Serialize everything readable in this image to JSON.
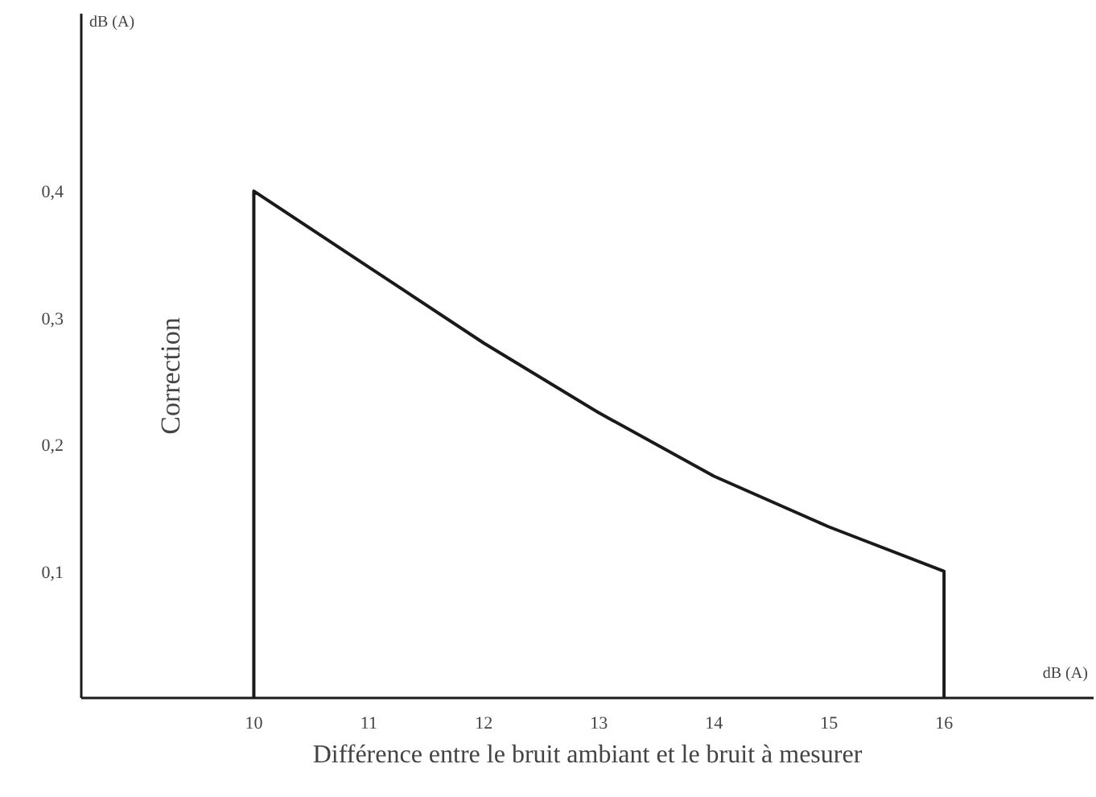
{
  "chart_data": {
    "type": "line",
    "xlabel": "Différence entre le bruit ambiant et le bruit à mesurer",
    "ylabel": "Correction",
    "annotations": [
      "dB (A)",
      "dB (A)"
    ],
    "series": [
      {
        "color": "#1a1a1a",
        "x": [
          10,
          10,
          11,
          12,
          13,
          14,
          15,
          16,
          16
        ],
        "values": [
          0,
          0.4,
          0.34,
          0.28,
          0.225,
          0.175,
          0.135,
          0.1,
          0
        ]
      }
    ],
    "xlim": [
      8.5,
      17.3
    ],
    "ylim": [
      0,
      0.54
    ],
    "xticks": [
      10,
      11,
      12,
      13,
      14,
      15,
      16
    ],
    "yticks": [
      {
        "value": 0.1,
        "label": "0,1"
      },
      {
        "value": 0.2,
        "label": "0,2"
      },
      {
        "value": 0.3,
        "label": "0,3"
      },
      {
        "value": 0.4,
        "label": "0,4"
      }
    ],
    "grid": false,
    "marker": "none",
    "line_style": "solid"
  }
}
